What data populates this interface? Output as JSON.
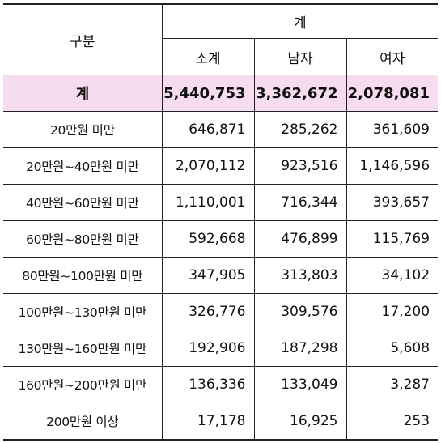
{
  "header": {
    "category_label": "구분",
    "group_label": "계",
    "columns": [
      "소계",
      "남자",
      "여자"
    ]
  },
  "rows": [
    {
      "label": "계",
      "values": [
        "5,440,753",
        "3,362,672",
        "2,078,081"
      ]
    },
    {
      "label": "20만원 미만",
      "values": [
        "646,871",
        "285,262",
        "361,609"
      ]
    },
    {
      "label": "20만원~40만원 미만",
      "values": [
        "2,070,112",
        "923,516",
        "1,146,596"
      ]
    },
    {
      "label": "40만원~60만원 미만",
      "values": [
        "1,110,001",
        "716,344",
        "393,657"
      ]
    },
    {
      "label": "60만원~80만원 미만",
      "values": [
        "592,668",
        "476,899",
        "115,769"
      ]
    },
    {
      "label": "80만원~100만원 미만",
      "values": [
        "347,905",
        "313,803",
        "34,102"
      ]
    },
    {
      "label": "100만원~130만원 미만",
      "values": [
        "326,776",
        "309,576",
        "17,200"
      ]
    },
    {
      "label": "130만원~160만원 미만",
      "values": [
        "192,906",
        "187,298",
        "5,608"
      ]
    },
    {
      "label": "160만원~200만원 미만",
      "values": [
        "136,336",
        "133,049",
        "3,287"
      ]
    },
    {
      "label": "200만원 이상",
      "values": [
        "17,178",
        "16,925",
        "253"
      ]
    }
  ],
  "colors": {
    "total_row_bg": "#f5dcef",
    "border": "#222222"
  }
}
